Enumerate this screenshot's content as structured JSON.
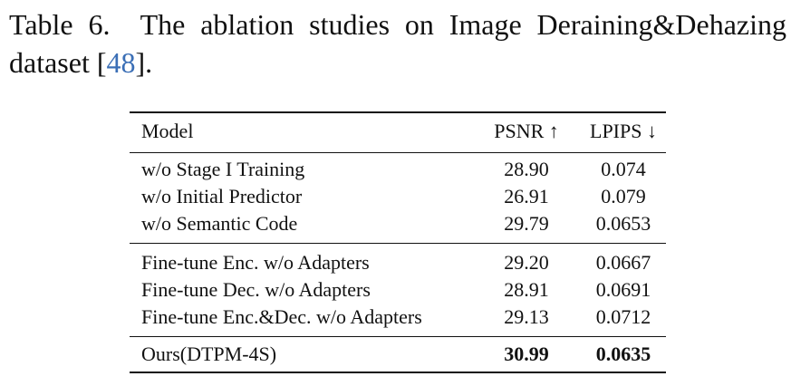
{
  "caption": {
    "label": "Table 6.",
    "text": "The ablation studies on Image Deraining&Dehazing dataset [",
    "ref": "48",
    "suffix": "]."
  },
  "table": {
    "headers": {
      "model": "Model",
      "psnr": "PSNR ↑",
      "lpips": "LPIPS ↓"
    },
    "groups": [
      [
        {
          "model": "w/o Stage I Training",
          "psnr": "28.90",
          "lpips": "0.074"
        },
        {
          "model": "w/o Initial Predictor",
          "psnr": "26.91",
          "lpips": "0.079"
        },
        {
          "model": "w/o Semantic Code",
          "psnr": "29.79",
          "lpips": "0.0653"
        }
      ],
      [
        {
          "model": "Fine-tune Enc. w/o Adapters",
          "psnr": "29.20",
          "lpips": "0.0667"
        },
        {
          "model": "Fine-tune Dec. w/o Adapters",
          "psnr": "28.91",
          "lpips": "0.0691"
        },
        {
          "model": "Fine-tune Enc.&Dec. w/o Adapters",
          "psnr": "29.13",
          "lpips": "0.0712"
        }
      ],
      [
        {
          "model": "Ours(DTPM-4S)",
          "psnr": "30.99",
          "lpips": "0.0635"
        }
      ]
    ]
  }
}
